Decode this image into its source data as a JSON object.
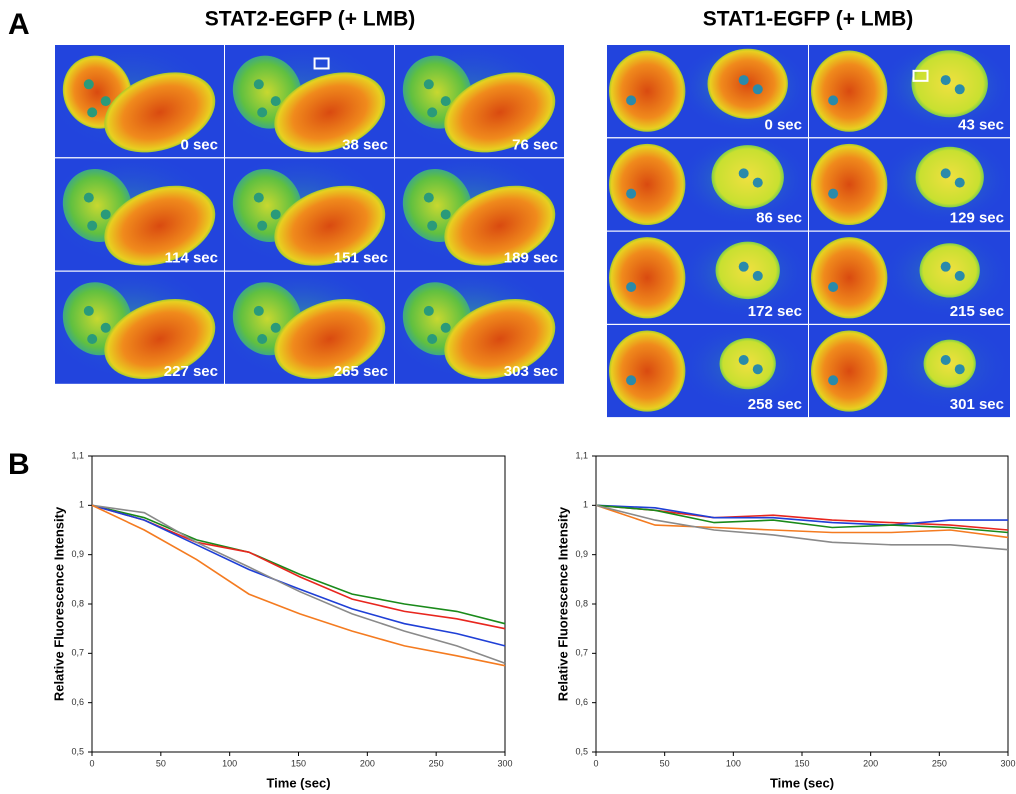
{
  "panel_labels": [
    "A",
    "B"
  ],
  "image_panels": [
    {
      "title": "STAT2-EGFP (+ LMB)",
      "timepoints": [
        "0 sec",
        "38 sec",
        "76 sec",
        "114 sec",
        "151 sec",
        "189 sec",
        "227 sec",
        "265 sec",
        "303 sec"
      ]
    },
    {
      "title": "STAT1-EGFP (+ LMB)",
      "timepoints": [
        "0 sec",
        "43 sec",
        "86 sec",
        "129 sec",
        "172 sec",
        "215 sec",
        "258 sec",
        "301 sec"
      ]
    }
  ],
  "chart_data": [
    {
      "type": "line",
      "xlabel": "Time (sec)",
      "ylabel": "Relative Fluorescence Intensity",
      "x": [
        0,
        38,
        76,
        114,
        151,
        189,
        227,
        265,
        300
      ],
      "series": [
        {
          "color": "#1a8a1a",
          "values": [
            1,
            0.975,
            0.93,
            0.905,
            0.86,
            0.82,
            0.8,
            0.785,
            0.76
          ]
        },
        {
          "color": "#e8261e",
          "values": [
            1,
            0.97,
            0.925,
            0.905,
            0.855,
            0.81,
            0.785,
            0.77,
            0.75
          ]
        },
        {
          "color": "#1f3fd6",
          "values": [
            1,
            0.97,
            0.92,
            0.87,
            0.83,
            0.79,
            0.76,
            0.74,
            0.715
          ]
        },
        {
          "color": "#8a8a8a",
          "values": [
            1,
            0.985,
            0.925,
            0.875,
            0.825,
            0.78,
            0.745,
            0.715,
            0.68
          ]
        },
        {
          "color": "#f47b20",
          "values": [
            1,
            0.95,
            0.89,
            0.82,
            0.78,
            0.745,
            0.715,
            0.695,
            0.675
          ]
        }
      ],
      "xlim": [
        0,
        300
      ],
      "ylim": [
        0.5,
        1.1
      ],
      "xticks": [
        0,
        50,
        100,
        150,
        200,
        250,
        300
      ],
      "yticks": [
        {
          "value": 0.5,
          "label": "0,5"
        },
        {
          "value": 0.6,
          "label": "0,6"
        },
        {
          "value": 0.7,
          "label": "0,7"
        },
        {
          "value": 0.8,
          "label": "0,8"
        },
        {
          "value": 0.9,
          "label": "0,9"
        },
        1,
        {
          "value": 1.1,
          "label": "1,1"
        }
      ]
    },
    {
      "type": "line",
      "xlabel": "Time (sec)",
      "ylabel": "Relative Fluorescence Intensity",
      "x": [
        0,
        43,
        86,
        129,
        172,
        215,
        258,
        300
      ],
      "series": [
        {
          "color": "#e8261e",
          "values": [
            1,
            0.99,
            0.975,
            0.98,
            0.97,
            0.965,
            0.96,
            0.95
          ]
        },
        {
          "color": "#1f3fd6",
          "values": [
            1,
            0.995,
            0.975,
            0.975,
            0.965,
            0.96,
            0.97,
            0.97
          ]
        },
        {
          "color": "#1a8a1a",
          "values": [
            1,
            0.99,
            0.965,
            0.97,
            0.955,
            0.96,
            0.955,
            0.945
          ]
        },
        {
          "color": "#f47b20",
          "values": [
            1,
            0.96,
            0.955,
            0.95,
            0.945,
            0.945,
            0.95,
            0.935
          ]
        },
        {
          "color": "#8a8a8a",
          "values": [
            1,
            0.97,
            0.95,
            0.94,
            0.925,
            0.92,
            0.92,
            0.91
          ]
        }
      ],
      "xlim": [
        0,
        300
      ],
      "ylim": [
        0.5,
        1.1
      ],
      "xticks": [
        0,
        50,
        100,
        150,
        200,
        250,
        300
      ],
      "yticks": [
        {
          "value": 0.5,
          "label": "0,5"
        },
        {
          "value": 0.6,
          "label": "0,6"
        },
        {
          "value": 0.7,
          "label": "0,7"
        },
        {
          "value": 0.8,
          "label": "0,8"
        },
        {
          "value": 0.9,
          "label": "0,9"
        },
        1,
        {
          "value": 1.1,
          "label": "1,1"
        }
      ]
    }
  ]
}
